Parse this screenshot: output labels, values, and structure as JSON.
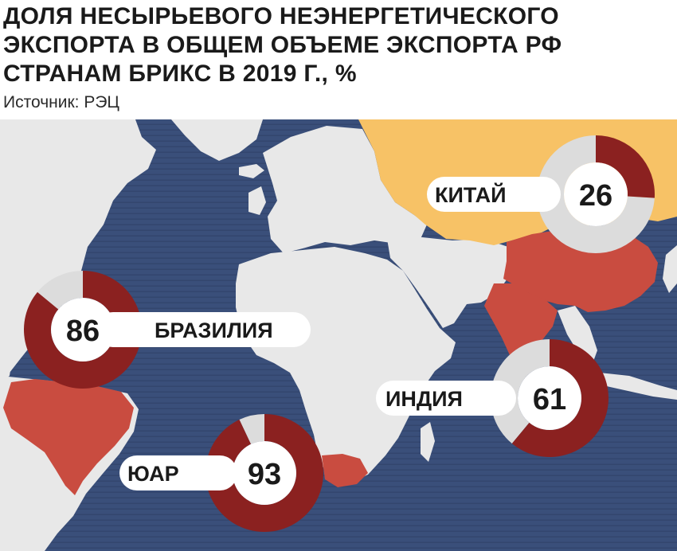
{
  "header": {
    "title_lines": [
      "ДОЛЯ НЕСЫРЬЕВОГО НЕЭНЕРГЕТИЧЕСКОГО",
      "ЭКСПОРТА В ОБЩЕМ ОБЪЕМЕ ЭКСПОРТА РФ",
      "СТРАНАМ БРИКС В 2019 Г., %"
    ],
    "source": "Источник: РЭЦ"
  },
  "colors": {
    "ocean": "#3a4f7a",
    "land": "#e8e8e8",
    "russia": "#f7c266",
    "highlight_country": "#c94c40",
    "ring_value": "#8b2120",
    "ring_remainder": "#dcdcdc",
    "label_bg": "#ffffff",
    "label_text": "#1a1a1a"
  },
  "chart_data": {
    "type": "pie",
    "unit": "%",
    "title": "ДОЛЯ НЕСЫРЬЕВОГО НЕЭНЕРГЕТИЧЕСКОГО ЭКСПОРТА В ОБЩЕМ ОБЪЕМЕ ЭКСПОРТА РФ СТРАНАМ БРИКС В 2019 Г., %",
    "categories": [
      "КИТАЙ",
      "БРАЗИЛИЯ",
      "ИНДИЯ",
      "ЮАР"
    ],
    "values": [
      26,
      86,
      61,
      93
    ],
    "series": [
      {
        "label": "КИТАЙ",
        "value": 26,
        "value_text": "26"
      },
      {
        "label": "БРАЗИЛИЯ",
        "value": 86,
        "value_text": "86"
      },
      {
        "label": "ИНДИЯ",
        "value": 61,
        "value_text": "61"
      },
      {
        "label": "ЮАР",
        "value": 93,
        "value_text": "93"
      }
    ]
  }
}
